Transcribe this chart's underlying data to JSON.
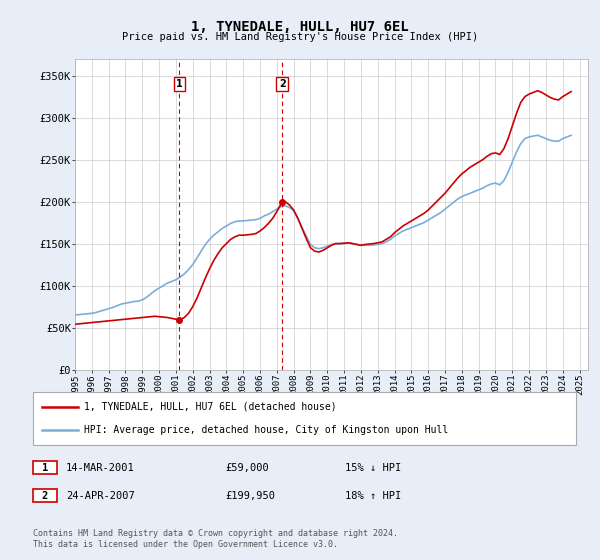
{
  "title": "1, TYNEDALE, HULL, HU7 6EL",
  "subtitle": "Price paid vs. HM Land Registry's House Price Index (HPI)",
  "ylim": [
    0,
    370000
  ],
  "yticks": [
    0,
    50000,
    100000,
    150000,
    200000,
    250000,
    300000,
    350000
  ],
  "ytick_labels": [
    "£0",
    "£50K",
    "£100K",
    "£150K",
    "£200K",
    "£250K",
    "£300K",
    "£350K"
  ],
  "bg_color": "#e8eef8",
  "plot_bg_color": "#ffffff",
  "grid_color": "#cccccc",
  "red_color": "#cc0000",
  "blue_color": "#7aaddc",
  "sale1_date_num": 2001.21,
  "sale1_price": 59000,
  "sale1_label": "1",
  "sale2_date_num": 2007.32,
  "sale2_price": 199950,
  "sale2_label": "2",
  "legend_line1": "1, TYNEDALE, HULL, HU7 6EL (detached house)",
  "legend_line2": "HPI: Average price, detached house, City of Kingston upon Hull",
  "table_row1": [
    "1",
    "14-MAR-2001",
    "£59,000",
    "15% ↓ HPI"
  ],
  "table_row2": [
    "2",
    "24-APR-2007",
    "£199,950",
    "18% ↑ HPI"
  ],
  "footnote": "Contains HM Land Registry data © Crown copyright and database right 2024.\nThis data is licensed under the Open Government Licence v3.0.",
  "hpi_data": {
    "years": [
      1995.0,
      1995.25,
      1995.5,
      1995.75,
      1996.0,
      1996.25,
      1996.5,
      1996.75,
      1997.0,
      1997.25,
      1997.5,
      1997.75,
      1998.0,
      1998.25,
      1998.5,
      1998.75,
      1999.0,
      1999.25,
      1999.5,
      1999.75,
      2000.0,
      2000.25,
      2000.5,
      2000.75,
      2001.0,
      2001.25,
      2001.5,
      2001.75,
      2002.0,
      2002.25,
      2002.5,
      2002.75,
      2003.0,
      2003.25,
      2003.5,
      2003.75,
      2004.0,
      2004.25,
      2004.5,
      2004.75,
      2005.0,
      2005.25,
      2005.5,
      2005.75,
      2006.0,
      2006.25,
      2006.5,
      2006.75,
      2007.0,
      2007.25,
      2007.5,
      2007.75,
      2008.0,
      2008.25,
      2008.5,
      2008.75,
      2009.0,
      2009.25,
      2009.5,
      2009.75,
      2010.0,
      2010.25,
      2010.5,
      2010.75,
      2011.0,
      2011.25,
      2011.5,
      2011.75,
      2012.0,
      2012.25,
      2012.5,
      2012.75,
      2013.0,
      2013.25,
      2013.5,
      2013.75,
      2014.0,
      2014.25,
      2014.5,
      2014.75,
      2015.0,
      2015.25,
      2015.5,
      2015.75,
      2016.0,
      2016.25,
      2016.5,
      2016.75,
      2017.0,
      2017.25,
      2017.5,
      2017.75,
      2018.0,
      2018.25,
      2018.5,
      2018.75,
      2019.0,
      2019.25,
      2019.5,
      2019.75,
      2020.0,
      2020.25,
      2020.5,
      2020.75,
      2021.0,
      2021.25,
      2021.5,
      2021.75,
      2022.0,
      2022.25,
      2022.5,
      2022.75,
      2023.0,
      2023.25,
      2023.5,
      2023.75,
      2024.0,
      2024.25,
      2024.5
    ],
    "values": [
      65000,
      65500,
      66000,
      66500,
      67000,
      68000,
      69500,
      71000,
      72500,
      74000,
      76000,
      78000,
      79000,
      80000,
      81000,
      81500,
      83000,
      86000,
      90000,
      94000,
      97000,
      100000,
      103000,
      105000,
      107000,
      110000,
      114000,
      119000,
      125000,
      133000,
      141000,
      149000,
      155000,
      160000,
      164000,
      168000,
      171000,
      174000,
      176000,
      177000,
      177000,
      177500,
      178000,
      178500,
      180000,
      183000,
      185000,
      188000,
      191000,
      194000,
      195000,
      193000,
      189000,
      180000,
      169000,
      159000,
      149000,
      145000,
      144000,
      145000,
      147000,
      149000,
      150000,
      150000,
      150000,
      151000,
      150000,
      149000,
      148000,
      148000,
      148000,
      148500,
      149000,
      150000,
      152000,
      155000,
      159000,
      162000,
      165000,
      167000,
      169000,
      171000,
      173000,
      175000,
      178000,
      181000,
      184000,
      187000,
      191000,
      195000,
      199000,
      203000,
      206000,
      208000,
      210000,
      212000,
      214000,
      216000,
      219000,
      221000,
      222000,
      220000,
      225000,
      235000,
      247000,
      259000,
      269000,
      275000,
      277000,
      278000,
      279000,
      277000,
      275000,
      273000,
      272000,
      272000,
      275000,
      277000,
      279000
    ]
  },
  "price_data": {
    "years": [
      1995.0,
      1995.25,
      1995.5,
      1995.75,
      1996.0,
      1996.25,
      1996.5,
      1996.75,
      1997.0,
      1997.25,
      1997.5,
      1997.75,
      1998.0,
      1998.25,
      1998.5,
      1998.75,
      1999.0,
      1999.25,
      1999.5,
      1999.75,
      2000.0,
      2000.25,
      2000.5,
      2000.75,
      2001.0,
      2001.21,
      2001.5,
      2001.75,
      2002.0,
      2002.25,
      2002.5,
      2002.75,
      2003.0,
      2003.25,
      2003.5,
      2003.75,
      2004.0,
      2004.25,
      2004.5,
      2004.75,
      2005.0,
      2005.25,
      2005.5,
      2005.75,
      2006.0,
      2006.25,
      2006.5,
      2006.75,
      2007.0,
      2007.32,
      2007.5,
      2007.75,
      2008.0,
      2008.25,
      2008.5,
      2008.75,
      2009.0,
      2009.25,
      2009.5,
      2009.75,
      2010.0,
      2010.25,
      2010.5,
      2010.75,
      2011.0,
      2011.25,
      2011.5,
      2011.75,
      2012.0,
      2012.25,
      2012.5,
      2012.75,
      2013.0,
      2013.25,
      2013.5,
      2013.75,
      2014.0,
      2014.25,
      2014.5,
      2014.75,
      2015.0,
      2015.25,
      2015.5,
      2015.75,
      2016.0,
      2016.25,
      2016.5,
      2016.75,
      2017.0,
      2017.25,
      2017.5,
      2017.75,
      2018.0,
      2018.25,
      2018.5,
      2018.75,
      2019.0,
      2019.25,
      2019.5,
      2019.75,
      2020.0,
      2020.25,
      2020.5,
      2020.75,
      2021.0,
      2021.25,
      2021.5,
      2021.75,
      2022.0,
      2022.25,
      2022.5,
      2022.75,
      2023.0,
      2023.25,
      2023.5,
      2023.75,
      2024.0,
      2024.25,
      2024.5
    ],
    "values": [
      54000,
      54500,
      55000,
      55500,
      56000,
      56500,
      57000,
      57500,
      58000,
      58500,
      59000,
      59500,
      60000,
      60500,
      61000,
      61500,
      62000,
      62500,
      63000,
      63500,
      63000,
      62500,
      62000,
      61000,
      60000,
      59000,
      62000,
      67000,
      75000,
      85000,
      97000,
      109000,
      120000,
      130000,
      138000,
      145000,
      150000,
      155000,
      158000,
      160000,
      160000,
      160500,
      161000,
      162000,
      165000,
      169000,
      174000,
      180000,
      188000,
      199950,
      200000,
      196000,
      190000,
      180000,
      168000,
      156000,
      145000,
      141000,
      140000,
      142000,
      145000,
      148000,
      150000,
      150000,
      150500,
      151000,
      150000,
      149000,
      148000,
      149000,
      149500,
      150000,
      151000,
      152000,
      155000,
      158000,
      163000,
      167000,
      171000,
      174000,
      177000,
      180000,
      183000,
      186000,
      190000,
      195000,
      200000,
      205000,
      210000,
      216000,
      222000,
      228000,
      233000,
      237000,
      241000,
      244000,
      247000,
      250000,
      254000,
      257000,
      258000,
      256000,
      263000,
      275000,
      290000,
      305000,
      318000,
      325000,
      328000,
      330000,
      332000,
      330000,
      327000,
      324000,
      322000,
      321000,
      325000,
      328000,
      331000
    ]
  },
  "xlim": [
    1995.0,
    2025.5
  ],
  "xticks": [
    1995,
    1996,
    1997,
    1998,
    1999,
    2000,
    2001,
    2002,
    2003,
    2004,
    2005,
    2006,
    2007,
    2008,
    2009,
    2010,
    2011,
    2012,
    2013,
    2014,
    2015,
    2016,
    2017,
    2018,
    2019,
    2020,
    2021,
    2022,
    2023,
    2024,
    2025
  ]
}
